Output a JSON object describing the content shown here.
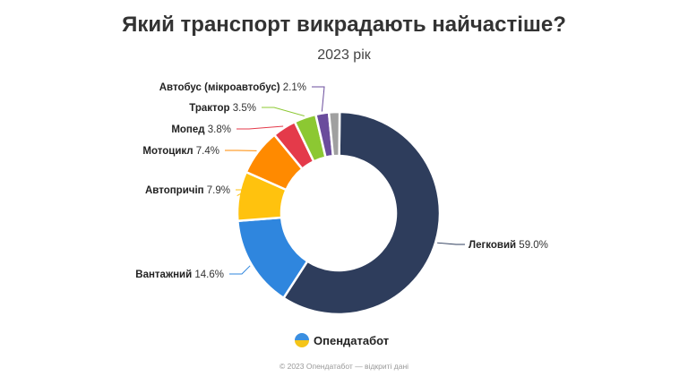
{
  "chart_data": {
    "type": "pie",
    "title": "Який транспорт викрадають найчастіше?",
    "subtitle": "2023 рік",
    "donut": true,
    "slices": [
      {
        "label": "Легковий",
        "value": 59.0,
        "value_label": "59.0%",
        "color": "#2e3d5c"
      },
      {
        "label": "Вантажний",
        "value": 14.6,
        "value_label": "14.6%",
        "color": "#2f86de"
      },
      {
        "label": "Автопричіп",
        "value": 7.9,
        "value_label": "7.9%",
        "color": "#ffc20e"
      },
      {
        "label": "Мотоцикл",
        "value": 7.4,
        "value_label": "7.4%",
        "color": "#ff8a00"
      },
      {
        "label": "Мопед",
        "value": 3.8,
        "value_label": "3.8%",
        "color": "#e43a4a"
      },
      {
        "label": "Трактор",
        "value": 3.5,
        "value_label": "3.5%",
        "color": "#8cc832"
      },
      {
        "label": "Автобус (мікроавтобус)",
        "value": 2.1,
        "value_label": "2.1%",
        "color": "#6a4c9c"
      },
      {
        "label": "",
        "value": 1.7,
        "value_label": "",
        "color": "#a0a0a0"
      }
    ]
  },
  "brand": "Опендатабот",
  "footer": "© 2023 Опендатабот — відкриті дані"
}
